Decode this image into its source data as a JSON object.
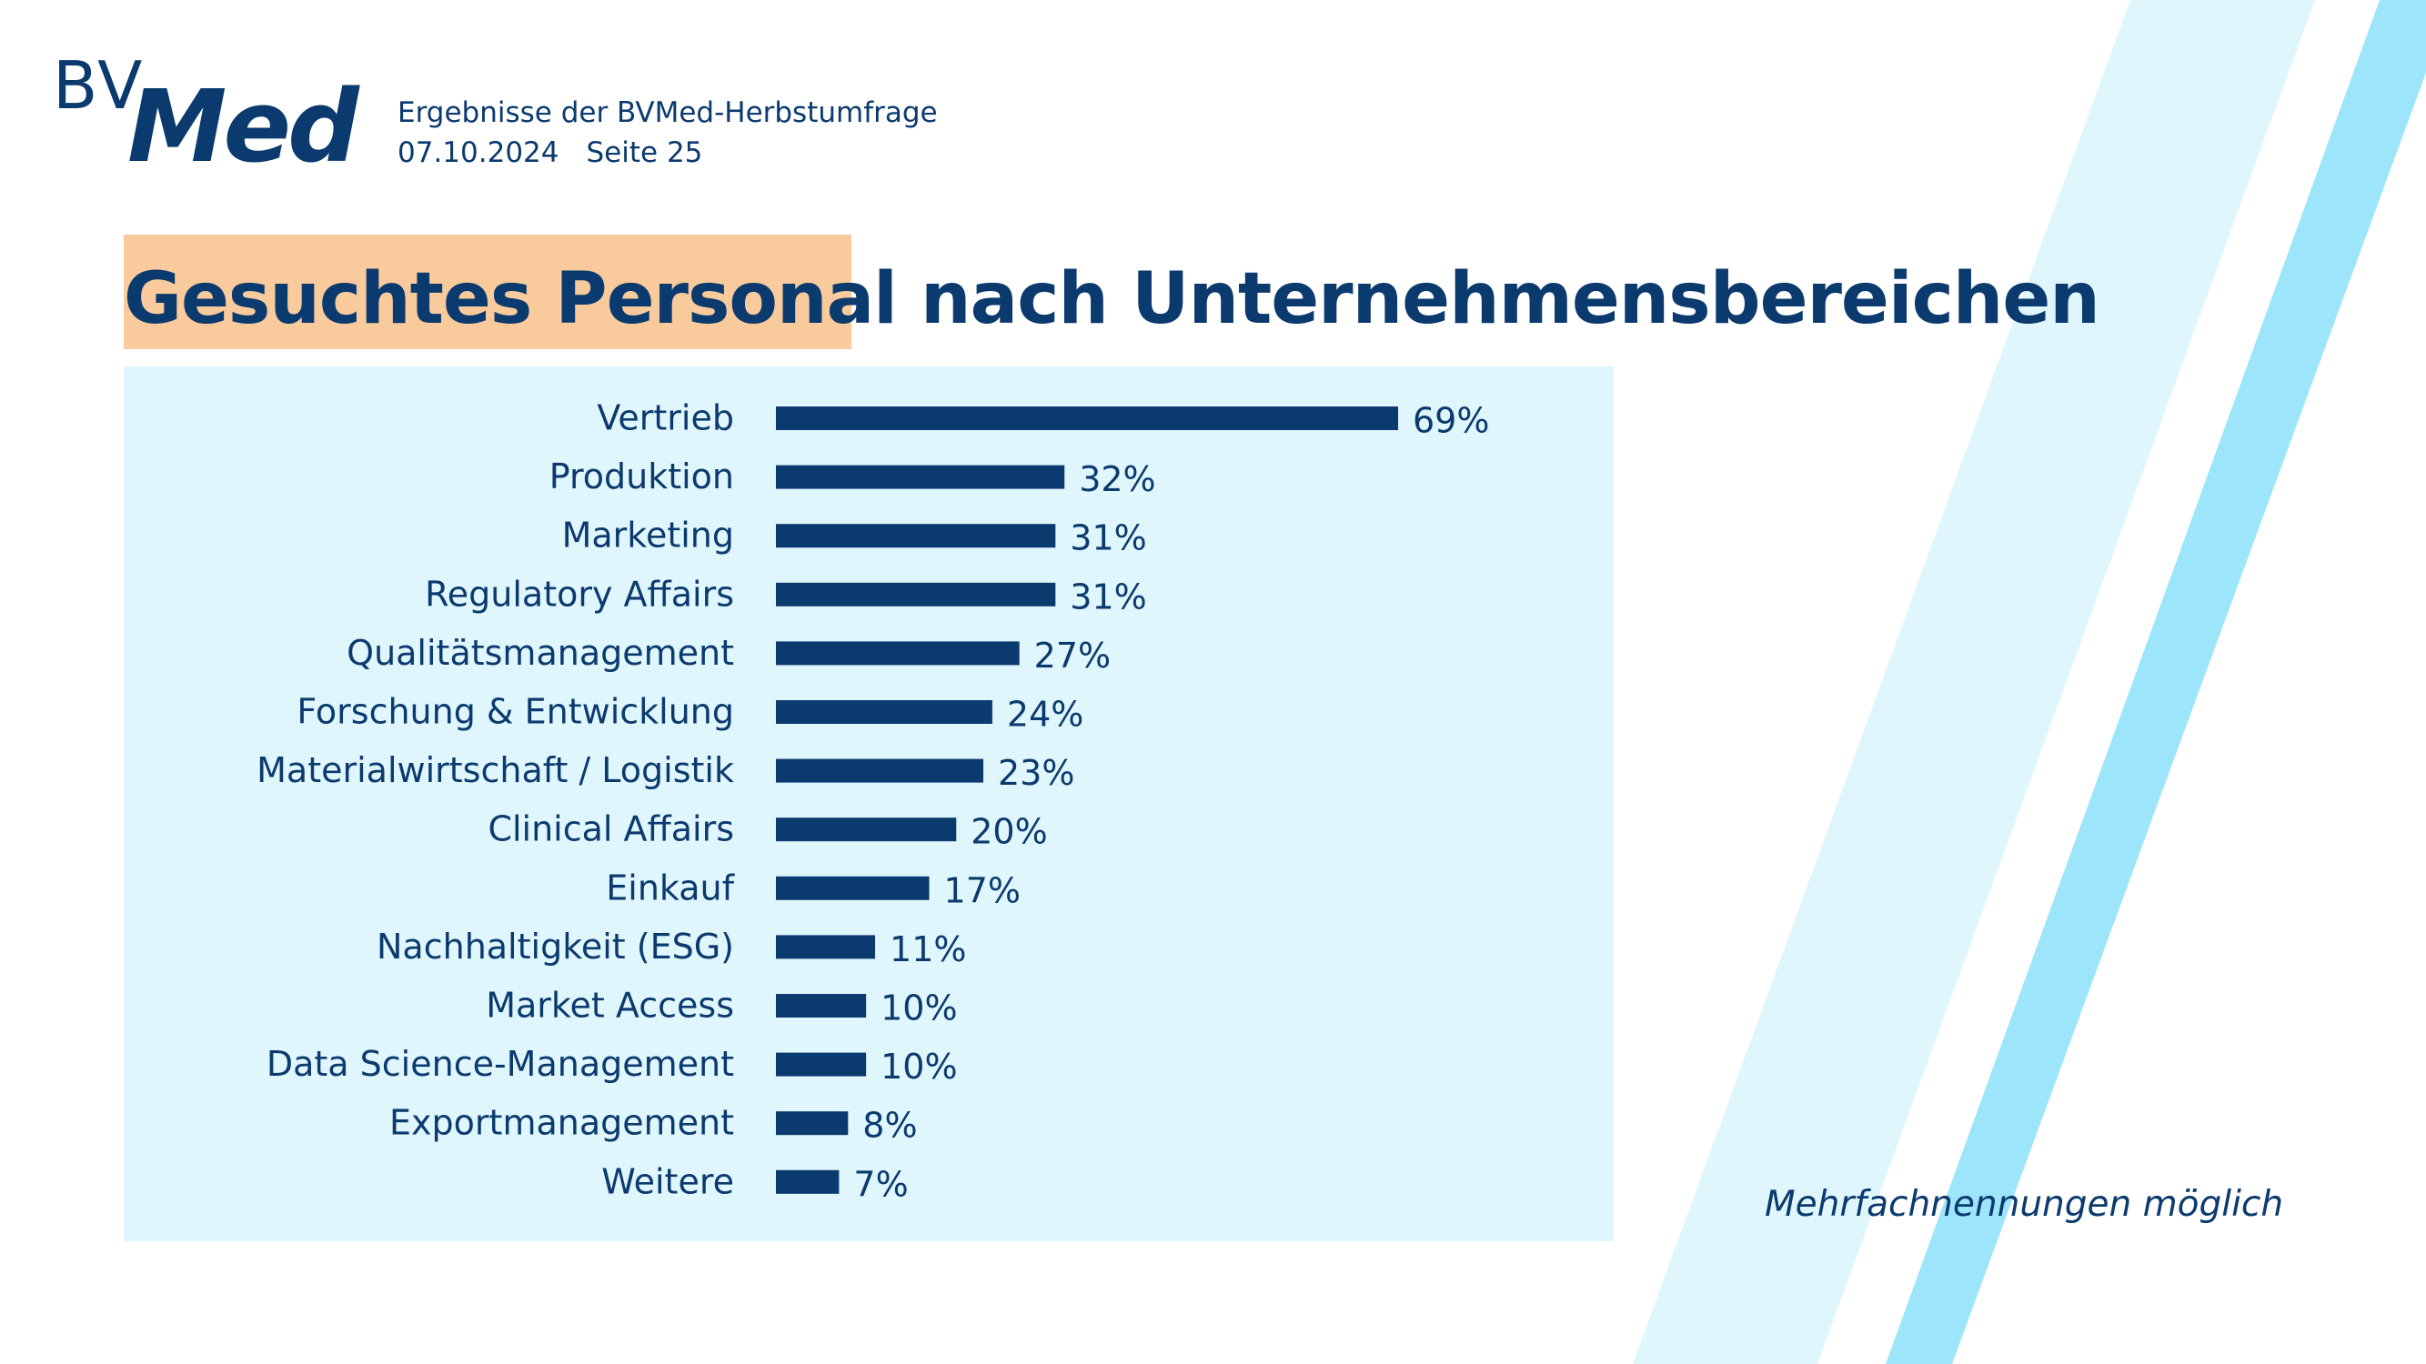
{
  "header": {
    "logo_prefix": "BV",
    "logo_main": "Med",
    "subtitle": "Ergebnisse der BVMed-Herbstumfrage",
    "date": "07.10.2024",
    "page_label": "Seite  25"
  },
  "title": {
    "highlighted": "Gesuchtes Personal",
    "rest": " nach Unternehmensbereichen"
  },
  "colors": {
    "brand": "#0b3a6e",
    "highlight": "#f9cb9c",
    "panel": "#e0f6fd",
    "stripe_light": "#e0f6fd",
    "stripe_dark": "#9de5fb"
  },
  "chart_data": {
    "type": "bar",
    "orientation": "horizontal",
    "categories": [
      "Vertrieb",
      "Produktion",
      "Marketing",
      "Regulatory Affairs",
      "Qualitätsmanagement",
      "Forschung & Entwicklung",
      "Materialwirtschaft / Logistik",
      "Clinical Affairs",
      "Einkauf",
      "Nachhaltigkeit (ESG)",
      "Market Access",
      "Data Science-Management",
      "Exportmanagement",
      "Weitere"
    ],
    "values": [
      69,
      32,
      31,
      31,
      27,
      24,
      23,
      20,
      17,
      11,
      10,
      10,
      8,
      7
    ],
    "value_labels": [
      "69%",
      "32%",
      "31%",
      "31%",
      "27%",
      "24%",
      "23%",
      "20%",
      "17%",
      "11%",
      "10%",
      "10%",
      "8%",
      "7%"
    ],
    "unit": "%",
    "xlim": [
      0,
      100
    ],
    "grid": false,
    "legend": "none"
  },
  "footnote": "Mehrfachnennungen möglich"
}
